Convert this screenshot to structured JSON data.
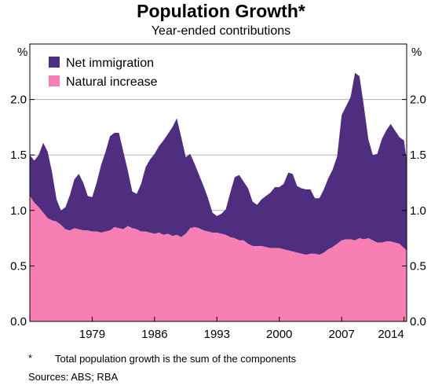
{
  "title": "Population Growth*",
  "subtitle": "Year-ended contributions",
  "footnote_marker": "*",
  "footnote_text": "Total population growth is the sum of the components",
  "sources": "Sources:   ABS; RBA",
  "chart_data": {
    "type": "area",
    "stacked": true,
    "title": "Population Growth*",
    "subtitle": "Year-ended contributions",
    "y_unit_left": "%",
    "y_unit_right": "%",
    "xlim": [
      1972.0,
      2014.3
    ],
    "ylim": [
      0,
      2.5
    ],
    "y_ticks": [
      0.0,
      0.5,
      1.0,
      1.5,
      2.0
    ],
    "y_tick_labels": [
      "0.0",
      "0.5",
      "1.0",
      "1.5",
      "2.0"
    ],
    "x_ticks": [
      1979,
      1986,
      1993,
      2000,
      2007,
      2014
    ],
    "x_tick_labels": [
      "1979",
      "1986",
      "1993",
      "2000",
      "2007",
      "2014"
    ],
    "grid": "horizontal",
    "legend": "top-left",
    "colors": {
      "net_immigration": "#4f2d7f",
      "natural_increase": "#f77fb4",
      "grid": "#b0b0b0"
    },
    "x": [
      1972.0,
      1972.5,
      1973.0,
      1973.5,
      1974.0,
      1974.5,
      1975.0,
      1975.5,
      1976.0,
      1976.5,
      1977.0,
      1977.5,
      1978.0,
      1978.5,
      1979.0,
      1979.5,
      1980.0,
      1980.5,
      1981.0,
      1981.5,
      1982.0,
      1982.5,
      1983.0,
      1983.5,
      1984.0,
      1984.5,
      1985.0,
      1985.5,
      1986.0,
      1986.5,
      1987.0,
      1987.5,
      1988.0,
      1988.5,
      1989.0,
      1989.5,
      1990.0,
      1990.5,
      1991.0,
      1991.5,
      1992.0,
      1992.5,
      1993.0,
      1993.5,
      1994.0,
      1994.5,
      1995.0,
      1995.5,
      1996.0,
      1996.5,
      1997.0,
      1997.5,
      1998.0,
      1998.5,
      1999.0,
      1999.5,
      2000.0,
      2000.5,
      2001.0,
      2001.5,
      2002.0,
      2002.5,
      2003.0,
      2003.5,
      2004.0,
      2004.5,
      2005.0,
      2005.5,
      2006.0,
      2006.5,
      2007.0,
      2007.5,
      2008.0,
      2008.5,
      2009.0,
      2009.5,
      2010.0,
      2010.5,
      2011.0,
      2011.5,
      2012.0,
      2012.5,
      2013.0,
      2013.5,
      2014.0,
      2014.3
    ],
    "series": [
      {
        "name": "Natural increase",
        "values": [
          1.13,
          1.07,
          1.03,
          0.98,
          0.93,
          0.91,
          0.9,
          0.87,
          0.83,
          0.82,
          0.84,
          0.83,
          0.82,
          0.82,
          0.81,
          0.81,
          0.8,
          0.81,
          0.82,
          0.85,
          0.84,
          0.83,
          0.86,
          0.84,
          0.83,
          0.81,
          0.81,
          0.8,
          0.79,
          0.8,
          0.78,
          0.79,
          0.77,
          0.78,
          0.76,
          0.79,
          0.84,
          0.85,
          0.84,
          0.82,
          0.81,
          0.8,
          0.8,
          0.79,
          0.78,
          0.76,
          0.75,
          0.73,
          0.73,
          0.7,
          0.68,
          0.68,
          0.68,
          0.67,
          0.66,
          0.66,
          0.66,
          0.65,
          0.64,
          0.63,
          0.62,
          0.61,
          0.6,
          0.61,
          0.61,
          0.6,
          0.62,
          0.65,
          0.67,
          0.7,
          0.73,
          0.74,
          0.74,
          0.73,
          0.75,
          0.74,
          0.75,
          0.73,
          0.71,
          0.71,
          0.72,
          0.72,
          0.71,
          0.7,
          0.66,
          0.64
        ]
      },
      {
        "name": "Net immigration",
        "values": [
          0.37,
          0.38,
          0.47,
          0.63,
          0.6,
          0.43,
          0.2,
          0.13,
          0.2,
          0.32,
          0.44,
          0.5,
          0.43,
          0.31,
          0.31,
          0.44,
          0.61,
          0.72,
          0.85,
          0.85,
          0.86,
          0.7,
          0.5,
          0.33,
          0.32,
          0.43,
          0.58,
          0.66,
          0.72,
          0.78,
          0.85,
          0.9,
          0.98,
          1.05,
          0.9,
          0.69,
          0.67,
          0.57,
          0.48,
          0.4,
          0.3,
          0.18,
          0.15,
          0.18,
          0.23,
          0.4,
          0.55,
          0.59,
          0.53,
          0.5,
          0.4,
          0.37,
          0.42,
          0.46,
          0.5,
          0.55,
          0.55,
          0.59,
          0.7,
          0.7,
          0.6,
          0.59,
          0.59,
          0.58,
          0.5,
          0.51,
          0.57,
          0.64,
          0.7,
          0.79,
          1.13,
          1.2,
          1.28,
          1.51,
          1.46,
          1.2,
          0.89,
          0.77,
          0.8,
          0.93,
          1.0,
          1.06,
          1.01,
          0.96,
          0.97,
          0.81
        ]
      }
    ]
  }
}
